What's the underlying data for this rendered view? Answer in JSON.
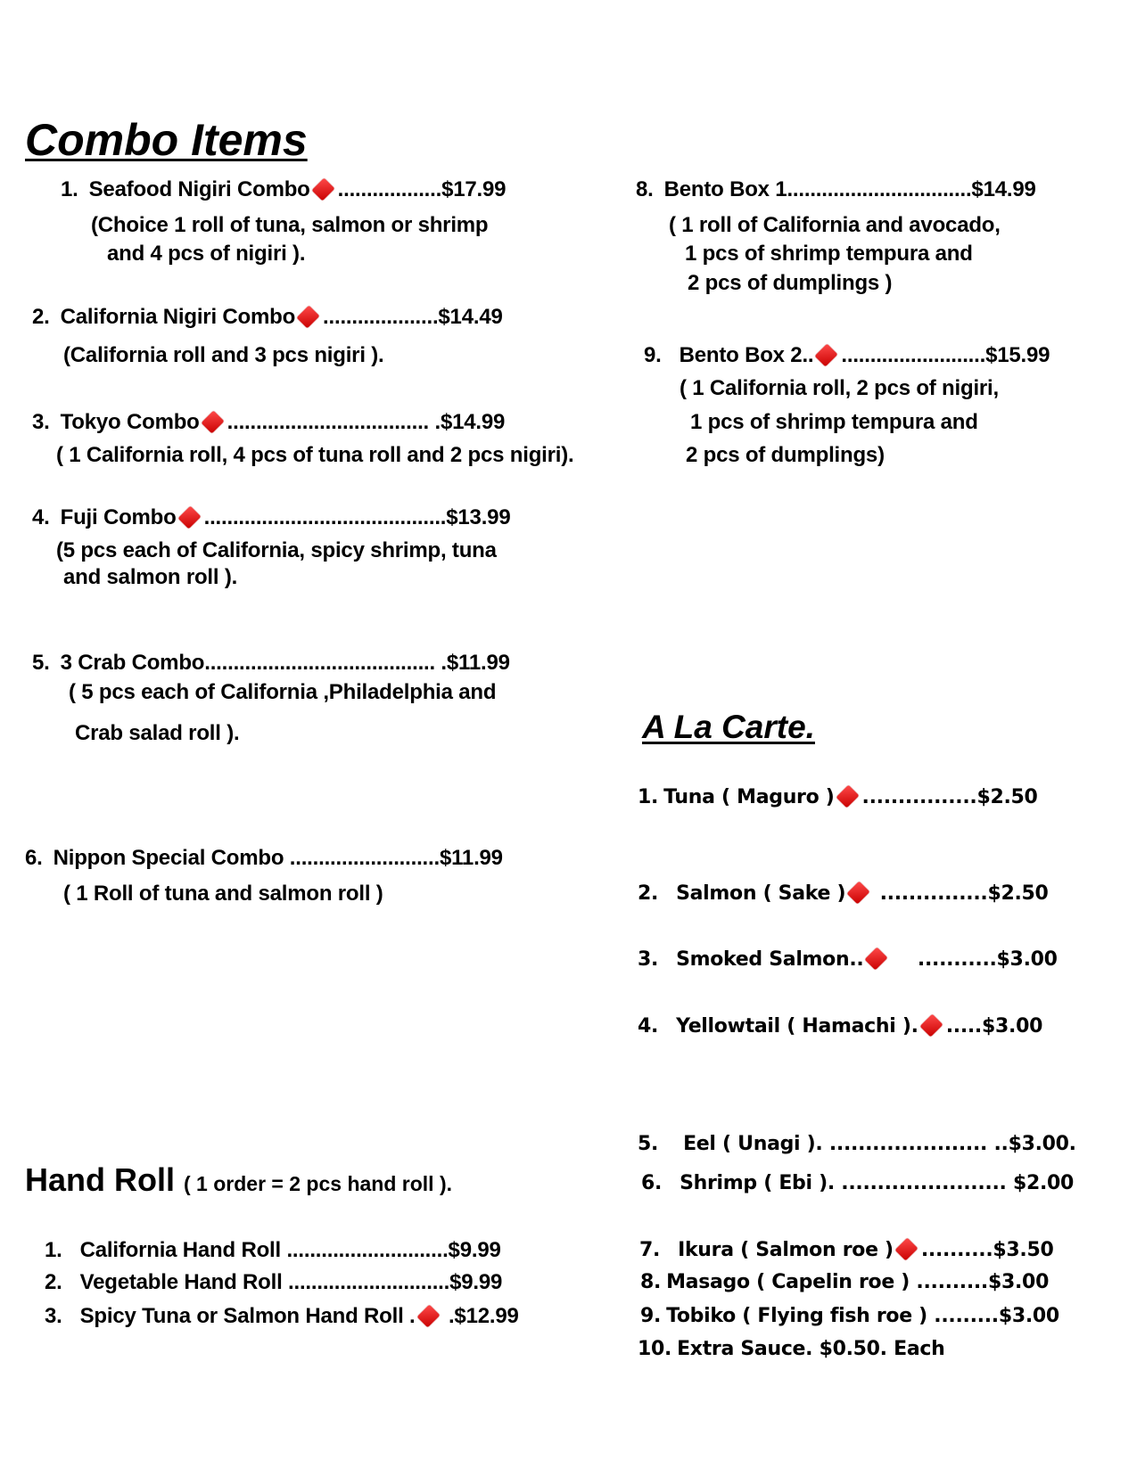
{
  "combo": {
    "title": "Combo Items",
    "lines": [
      {
        "num": "1.",
        "name": "Seafood Nigiri Combo",
        "diamond": true,
        "leader": "..................$17.99"
      },
      {
        "text": "(Choice 1 roll of tuna, salmon or shrimp"
      },
      {
        "text": "and 4 pcs of nigiri )."
      },
      {
        "num": "2.",
        "name": "California Nigiri Combo",
        "diamond": true,
        "leader": "....................$14.49"
      },
      {
        "text": "(California roll and 3 pcs nigiri )."
      },
      {
        "num": "3.",
        "name": "Tokyo Combo",
        "diamond": true,
        "leader": "................................... .$14.99"
      },
      {
        "text": "( 1 California roll, 4 pcs of tuna roll and 2 pcs nigiri)."
      },
      {
        "num": "4.",
        "name": "Fuji Combo",
        "diamond": true,
        "leader": "..........................................$13.99"
      },
      {
        "text": "(5 pcs each of California, spicy shrimp, tuna"
      },
      {
        "text": "and salmon roll )."
      },
      {
        "num": "5.",
        "name": "3 Crab Combo",
        "diamond": false,
        "leader": "........................................ .$11.99"
      },
      {
        "text": "( 5 pcs each of California ,Philadelphia and"
      },
      {
        "text": "Crab salad roll )."
      },
      {
        "num": "6.",
        "name": "Nippon Special Combo",
        "diamond": false,
        "leader": " ..........................$11.99"
      },
      {
        "text": "( 1 Roll of tuna and salmon roll )"
      },
      {
        "num": "8.",
        "name": "Bento Box 1",
        "diamond": false,
        "leader": "................................$14.99"
      },
      {
        "text": "( 1 roll of California and avocado,"
      },
      {
        "text": "1 pcs of shrimp tempura and"
      },
      {
        "text": "2 pcs of dumplings )"
      },
      {
        "num": "9.",
        "name": "Bento Box 2..",
        "diamond": true,
        "leader": ".........................$15.99"
      },
      {
        "text": "( 1 California roll, 2 pcs of nigiri,"
      },
      {
        "text": "1 pcs of shrimp tempura and"
      },
      {
        "text": "2 pcs of dumplings)"
      }
    ]
  },
  "hand_roll": {
    "title": "Hand Roll",
    "subtitle": "( 1 order = 2 pcs hand roll ).",
    "lines": [
      {
        "num": "1.",
        "name": "California Hand Roll",
        "diamond": false,
        "leader": " ............................$9.99"
      },
      {
        "num": "2.",
        "name": "Vegetable Hand Roll",
        "diamond": false,
        "leader": " ............................$9.99"
      },
      {
        "num": "3.",
        "name": "Spicy Tuna or Salmon Hand Roll .",
        "diamond": true,
        "leader": " .$12.99"
      }
    ]
  },
  "a_la_carte": {
    "title": "A La Carte.",
    "lines": [
      {
        "num": "1.",
        "name": "Tuna ( Maguro )",
        "diamond": true,
        "leader": "................$2.50"
      },
      {
        "num": "2.",
        "name": "Salmon ( Sake )",
        "diamond": true,
        "leader": " ...............$2.50"
      },
      {
        "num": "3.",
        "name": "Smoked Salmon..",
        "diamond": true,
        "leader": "    ...........$3.00"
      },
      {
        "num": "4.",
        "name": "Yellowtail ( Hamachi ).",
        "diamond": true,
        "leader": ".....$3.00"
      },
      {
        "num": "5.",
        "name": "Eel ( Unagi ). ......................  ..$3.00.",
        "diamond": false,
        "leader": ""
      },
      {
        "num": "6.",
        "name": "Shrimp ( Ebi ). ....................... $2.00",
        "diamond": false,
        "leader": ""
      },
      {
        "num": "7.",
        "name": "Ikura ( Salmon roe )",
        "diamond": true,
        "leader": "..........$3.50"
      },
      {
        "num": "8.",
        "name": "Masago ( Capelin roe ) ..........$3.00",
        "diamond": false,
        "leader": ""
      },
      {
        "num": "9.",
        "name": "Tobiko ( Flying fish roe ) .........$3.00",
        "diamond": false,
        "leader": ""
      },
      {
        "num": "10.",
        "name": "Extra Sauce. $0.50. Each",
        "diamond": false,
        "leader": ""
      }
    ]
  },
  "colors": {
    "diamond": "#e01010",
    "text": "#000000"
  }
}
